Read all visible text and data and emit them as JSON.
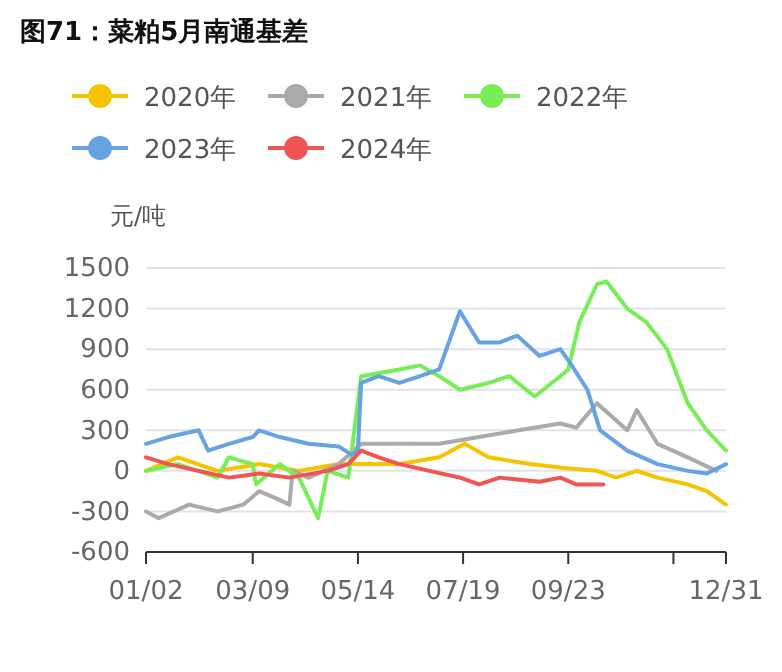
{
  "chart_data": {
    "type": "line",
    "title": "图71：菜粕5月南通基差",
    "ylabel": "元/吨",
    "legend": "top",
    "grid": "y",
    "xlim": [
      "--01-02",
      "--12-31"
    ],
    "xticks": [
      {
        "value": "--01-02",
        "label": "01/02"
      },
      {
        "value": "--03-09",
        "label": "03/09"
      },
      {
        "value": "--05-14",
        "label": "05/14"
      },
      {
        "value": "--07-19",
        "label": "07/19"
      },
      {
        "value": "--09-23",
        "label": "09/23"
      },
      {
        "value": "--11-28",
        "label": null
      },
      {
        "value": "--12-31",
        "label": "12/31"
      }
    ],
    "ylim": [
      -600,
      1500
    ],
    "yticks": [
      -600,
      -300,
      0,
      300,
      600,
      900,
      1200,
      1500
    ],
    "series": [
      {
        "name": "2020年",
        "color": "#f5c400",
        "x": [
          "--01-02",
          "--01-22",
          "--02-16",
          "--03-13",
          "--04-07",
          "--05-02",
          "--05-16",
          "--06-09",
          "--07-04",
          "--07-20",
          "--08-04",
          "--08-30",
          "--09-22",
          "--10-11",
          "--10-23",
          "--11-05",
          "--11-18",
          "--12-07",
          "--12-19",
          "--12-31"
        ],
        "values": [
          0,
          100,
          0,
          50,
          0,
          50,
          50,
          50,
          100,
          200,
          100,
          50,
          20,
          0,
          -50,
          0,
          -50,
          -100,
          -150,
          -250
        ]
      },
      {
        "name": "2021年",
        "color": "#aaaaaa",
        "x": [
          "--01-02",
          "--01-10",
          "--01-29",
          "--02-16",
          "--03-03",
          "--03-13",
          "--03-23",
          "--04-01",
          "--04-03",
          "--04-13",
          "--05-02",
          "--05-16",
          "--06-09",
          "--07-04",
          "--07-29",
          "--08-23",
          "--09-18",
          "--09-28",
          "--10-11",
          "--10-30",
          "--11-05",
          "--11-18",
          "--12-07",
          "--12-25"
        ],
        "values": [
          -300,
          -350,
          -250,
          -300,
          -250,
          -150,
          -200,
          -250,
          0,
          -50,
          50,
          200,
          200,
          200,
          250,
          300,
          350,
          320,
          500,
          300,
          450,
          200,
          100,
          0
        ]
      },
      {
        "name": "2022年",
        "color": "#77ee55",
        "x": [
          "--01-02",
          "--01-22",
          "--02-16",
          "--02-23",
          "--03-09",
          "--03-11",
          "--03-26",
          "--04-07",
          "--04-13",
          "--04-19",
          "--04-25",
          "--05-08",
          "--05-16",
          "--06-09",
          "--06-22",
          "--07-04",
          "--07-17",
          "--08-04",
          "--08-17",
          "--09-02",
          "--09-18",
          "--09-23",
          "--09-30",
          "--10-11",
          "--10-17",
          "--10-30",
          "--11-11",
          "--11-24",
          "--12-07",
          "--12-19",
          "--12-31"
        ],
        "values": [
          0,
          50,
          -50,
          100,
          50,
          -100,
          50,
          -50,
          -200,
          -350,
          0,
          -50,
          700,
          750,
          780,
          700,
          600,
          650,
          700,
          550,
          700,
          750,
          1100,
          1380,
          1400,
          1200,
          1100,
          900,
          500,
          300,
          150
        ]
      },
      {
        "name": "2023年",
        "color": "#66a3e0",
        "x": [
          "--01-02",
          "--01-16",
          "--02-04",
          "--02-10",
          "--02-23",
          "--03-09",
          "--03-13",
          "--03-26",
          "--04-13",
          "--05-02",
          "--05-10",
          "--05-14",
          "--05-16",
          "--05-27",
          "--06-09",
          "--06-22",
          "--07-04",
          "--07-17",
          "--07-29",
          "--08-11",
          "--08-22",
          "--09-05",
          "--09-18",
          "--09-24",
          "--10-05",
          "--10-13",
          "--10-30",
          "--11-18",
          "--12-07",
          "--12-19",
          "--12-31"
        ],
        "values": [
          200,
          250,
          300,
          150,
          200,
          250,
          300,
          250,
          200,
          180,
          120,
          150,
          650,
          700,
          650,
          700,
          750,
          1180,
          950,
          950,
          1000,
          850,
          900,
          800,
          600,
          300,
          150,
          50,
          0,
          -20,
          50
        ]
      },
      {
        "name": "2024年",
        "color": "#f05555",
        "x": [
          "--01-02",
          "--01-16",
          "--02-04",
          "--02-23",
          "--03-13",
          "--04-01",
          "--04-25",
          "--05-08",
          "--05-16",
          "--05-27",
          "--06-09",
          "--06-28",
          "--07-17",
          "--07-29",
          "--08-11",
          "--09-05",
          "--09-18",
          "--09-28",
          "--10-15"
        ],
        "values": [
          100,
          50,
          0,
          -50,
          -20,
          -50,
          0,
          50,
          150,
          100,
          50,
          0,
          -50,
          -100,
          -50,
          -80,
          -50,
          -100,
          -100
        ]
      }
    ]
  }
}
